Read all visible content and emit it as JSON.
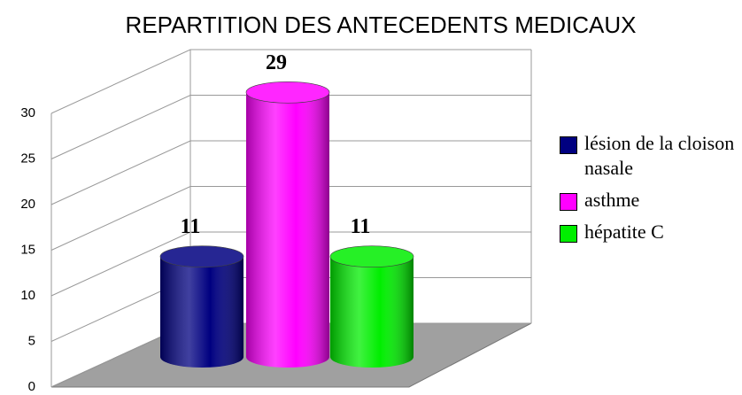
{
  "chart_data": {
    "type": "bar3d",
    "title": "REPARTITION DES ANTECEDENTS MEDICAUX",
    "series": [
      {
        "name": "lésion de la cloison nasale",
        "color": "#000080",
        "values": [
          11
        ]
      },
      {
        "name": "asthme",
        "color": "#ff00ff",
        "values": [
          29
        ]
      },
      {
        "name": "hépatite C",
        "color": "#00ee00",
        "values": [
          11
        ]
      }
    ],
    "ylim": [
      0,
      30
    ],
    "yticks": [
      0,
      5,
      10,
      15,
      20,
      25,
      30
    ],
    "grid": true,
    "legend": "right"
  }
}
